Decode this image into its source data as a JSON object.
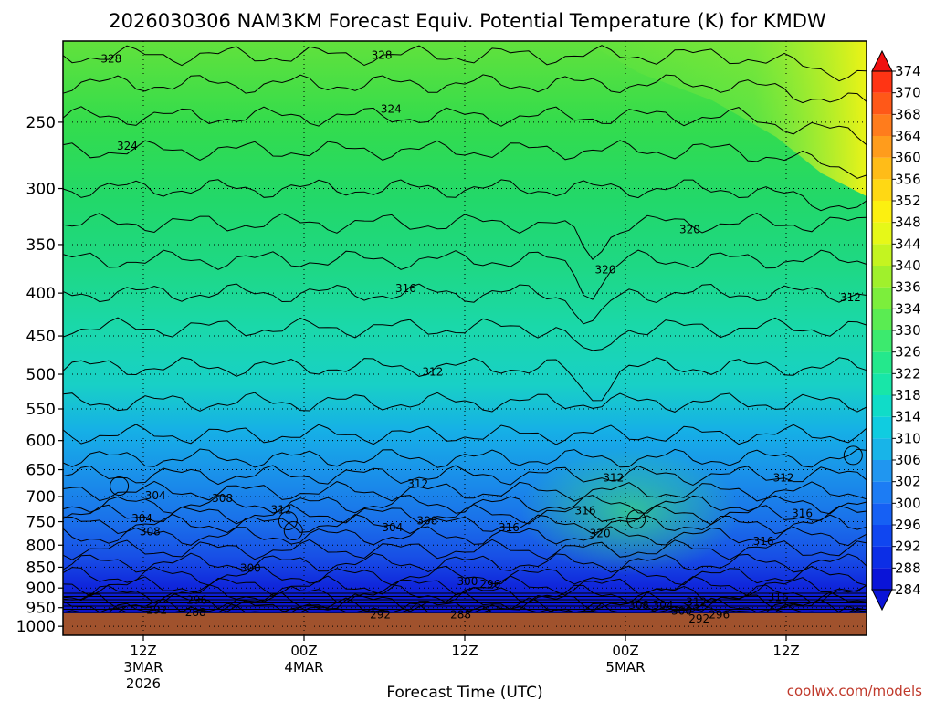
{
  "chart_data": {
    "type": "heatmap",
    "title": "2026030306 NAM3KM Forecast Equiv. Potential Temperature (K) for KMDW",
    "xlabel": "Forecast Time (UTC)",
    "ylabel": "",
    "credit": "coolwx.com/models",
    "y_axis": {
      "units": "hPa",
      "ticks": [
        250,
        300,
        350,
        400,
        450,
        500,
        550,
        600,
        650,
        700,
        750,
        800,
        850,
        900,
        950,
        1000
      ],
      "range": [
        200,
        1025
      ],
      "scale": "log"
    },
    "x_axis": {
      "units": "forecast hour",
      "range": [
        0,
        60
      ],
      "ticks": [
        {
          "hour": 6,
          "lines": [
            "12Z",
            "3MAR",
            "2026"
          ]
        },
        {
          "hour": 18,
          "lines": [
            "00Z",
            "4MAR"
          ]
        },
        {
          "hour": 30,
          "lines": [
            "12Z"
          ]
        },
        {
          "hour": 42,
          "lines": [
            "00Z",
            "5MAR"
          ]
        },
        {
          "hour": 54,
          "lines": [
            "12Z"
          ]
        }
      ]
    },
    "colorbar": {
      "levels": [
        284,
        288,
        292,
        296,
        300,
        302,
        306,
        310,
        314,
        318,
        322,
        326,
        330,
        334,
        336,
        340,
        344,
        348,
        352,
        356,
        360,
        364,
        368,
        370,
        374
      ],
      "colors": [
        "#0a14d8",
        "#0c2ee6",
        "#1046f0",
        "#1660f4",
        "#1c7cf4",
        "#2096f0",
        "#18b4e8",
        "#10cce0",
        "#10dcc8",
        "#18e6a8",
        "#24e88c",
        "#3cea6e",
        "#5aec52",
        "#7cee3c",
        "#a0f02c",
        "#c4f420",
        "#e6f818",
        "#fcf010",
        "#ffd814",
        "#ffbc18",
        "#ff9c1c",
        "#ff7c1c",
        "#ff5818",
        "#ff3414",
        "#f01010"
      ]
    },
    "contour_labels": [
      {
        "value": 328,
        "hour": 3.6,
        "p": 210
      },
      {
        "value": 328,
        "hour": 23.8,
        "p": 208
      },
      {
        "value": 324,
        "hour": 24.5,
        "p": 241
      },
      {
        "value": 324,
        "hour": 4.8,
        "p": 267
      },
      {
        "value": 320,
        "hour": 46.8,
        "p": 336
      },
      {
        "value": 320,
        "hour": 40.5,
        "p": 375
      },
      {
        "value": 316,
        "hour": 25.6,
        "p": 395
      },
      {
        "value": 312,
        "hour": 58.8,
        "p": 405
      },
      {
        "value": 312,
        "hour": 27.6,
        "p": 497
      },
      {
        "value": 312,
        "hour": 26.5,
        "p": 676
      },
      {
        "value": 312,
        "hour": 41.1,
        "p": 665
      },
      {
        "value": 312,
        "hour": 53.8,
        "p": 665
      },
      {
        "value": 304,
        "hour": 6.9,
        "p": 698
      },
      {
        "value": 308,
        "hour": 11.9,
        "p": 703
      },
      {
        "value": 312,
        "hour": 16.3,
        "p": 726
      },
      {
        "value": 316,
        "hour": 39.0,
        "p": 728
      },
      {
        "value": 316,
        "hour": 55.2,
        "p": 733
      },
      {
        "value": 304,
        "hour": 5.9,
        "p": 743
      },
      {
        "value": 308,
        "hour": 27.2,
        "p": 748
      },
      {
        "value": 304,
        "hour": 24.6,
        "p": 762
      },
      {
        "value": 316,
        "hour": 33.3,
        "p": 762
      },
      {
        "value": 308,
        "hour": 6.5,
        "p": 771
      },
      {
        "value": 320,
        "hour": 40.1,
        "p": 775
      },
      {
        "value": 316,
        "hour": 52.3,
        "p": 791
      },
      {
        "value": 300,
        "hour": 14.0,
        "p": 852
      },
      {
        "value": 300,
        "hour": 30.2,
        "p": 884
      },
      {
        "value": 296,
        "hour": 31.9,
        "p": 891
      },
      {
        "value": 296,
        "hour": 10.0,
        "p": 930
      },
      {
        "value": 308,
        "hour": 43.0,
        "p": 943
      },
      {
        "value": 304,
        "hour": 44.8,
        "p": 943
      },
      {
        "value": 312,
        "hour": 47.3,
        "p": 935
      },
      {
        "value": 316,
        "hour": 53.4,
        "p": 924
      },
      {
        "value": 292,
        "hour": 7.0,
        "p": 957
      },
      {
        "value": 288,
        "hour": 9.9,
        "p": 963
      },
      {
        "value": 300,
        "hour": 46.2,
        "p": 959
      },
      {
        "value": 292,
        "hour": 23.7,
        "p": 969
      },
      {
        "value": 288,
        "hour": 29.7,
        "p": 969
      },
      {
        "value": 296,
        "hour": 49.0,
        "p": 969
      },
      {
        "value": 292,
        "hour": 47.5,
        "p": 980
      }
    ]
  }
}
